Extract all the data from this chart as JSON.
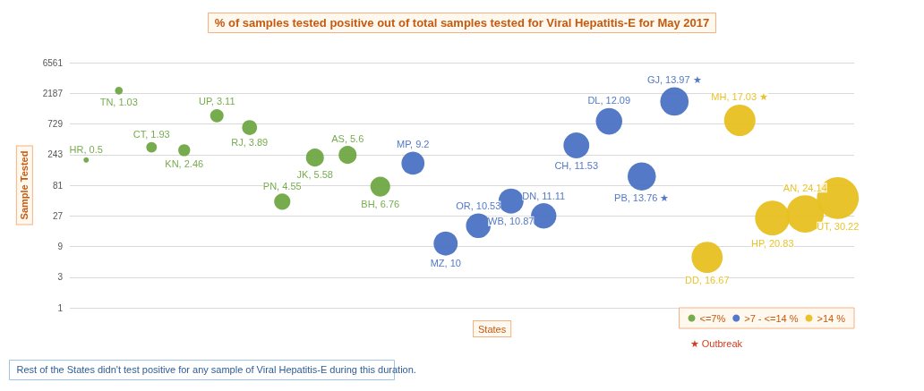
{
  "chart_data": {
    "type": "bubble",
    "title": "% of samples tested positive out of total samples tested for Viral Hepatitis-E for May 2017",
    "xlabel": "States",
    "ylabel": "Sample Tested",
    "categories": [
      null,
      null,
      null,
      null,
      null,
      null,
      null,
      null,
      null,
      null,
      null,
      null,
      null,
      null,
      null,
      null,
      null,
      null,
      null,
      null,
      null,
      null,
      null,
      null
    ],
    "series": [
      {
        "name": "<=7%",
        "color": "#70a845",
        "values": [
          200,
          2400,
          316,
          284,
          977,
          640,
          45,
          218,
          240,
          77,
          null,
          null,
          null,
          null,
          null,
          null,
          null,
          null,
          null,
          null,
          null,
          null,
          null,
          null
        ],
        "sizes": [
          0.5,
          1.03,
          1.93,
          2.46,
          3.11,
          3.89,
          4.55,
          5.58,
          5.6,
          6.76,
          null,
          null,
          null,
          null,
          null,
          null,
          null,
          null,
          null,
          null,
          null,
          null,
          null,
          null
        ],
        "value_labels": [
          "HR, 0.5",
          "TN, 1.03",
          "CT, 1.93",
          "KN, 2.46",
          "UP, 3.11",
          "RJ, 3.89",
          "PN, 4.55",
          "JK, 5.58",
          "AS, 5.6",
          "BH, 6.76",
          null,
          null,
          null,
          null,
          null,
          null,
          null,
          null,
          null,
          null,
          null,
          null,
          null,
          null
        ]
      },
      {
        "name": ">7 - <=14 %",
        "color": "#4a72c4",
        "values": [
          null,
          null,
          null,
          null,
          null,
          null,
          null,
          null,
          null,
          null,
          178,
          10,
          19,
          46,
          27,
          338,
          800,
          111,
          1630,
          null,
          null,
          null,
          null,
          null
        ],
        "sizes": [
          null,
          null,
          null,
          null,
          null,
          null,
          null,
          null,
          null,
          null,
          9.2,
          10,
          10.53,
          10.87,
          11.11,
          11.53,
          12.09,
          13.76,
          13.97,
          null,
          null,
          null,
          null,
          null
        ],
        "value_labels": [
          null,
          null,
          null,
          null,
          null,
          null,
          null,
          null,
          null,
          null,
          "MP, 9.2",
          "MZ, 10",
          "OR, 10.53",
          "WB, 10.87",
          "DN, 11.11",
          "CH, 11.53",
          "DL, 12.09",
          "PB, 13.76 ★",
          "GJ, 13.97 ★",
          null,
          null,
          null,
          null,
          null
        ]
      },
      {
        "name": ">14 %",
        "color": "#e8c020",
        "values": [
          null,
          null,
          null,
          null,
          null,
          null,
          null,
          null,
          null,
          null,
          null,
          null,
          null,
          null,
          null,
          null,
          null,
          null,
          null,
          6.1,
          830,
          25,
          29,
          51
        ],
        "sizes": [
          null,
          null,
          null,
          null,
          null,
          null,
          null,
          null,
          null,
          null,
          null,
          null,
          null,
          null,
          null,
          null,
          null,
          null,
          null,
          16.67,
          17.03,
          20.83,
          24.14,
          30.22
        ],
        "value_labels": [
          null,
          null,
          null,
          null,
          null,
          null,
          null,
          null,
          null,
          null,
          null,
          null,
          null,
          null,
          null,
          null,
          null,
          null,
          null,
          "DD, 16.67",
          "MH, 17.03 ★",
          "HP, 20.83",
          "AN, 24.14",
          "UT, 30.22"
        ]
      }
    ],
    "log": "y",
    "ylim": [
      1,
      6561
    ],
    "yticks": [
      1,
      3,
      9,
      27,
      81,
      243,
      729,
      2187,
      6561
    ],
    "grid": "y",
    "legend": "bottom right",
    "marker": "circle",
    "annotations": [
      "★ Outbreak",
      "Rest of the States didn't test positive for any sample of Viral Hepatitis-E during this duration."
    ]
  }
}
